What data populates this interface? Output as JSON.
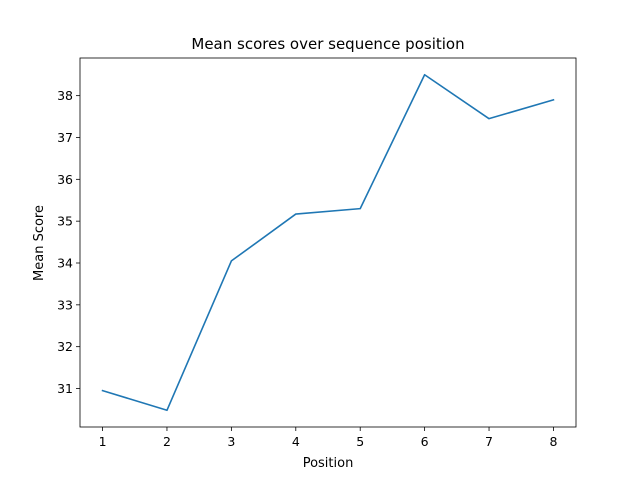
{
  "chart_data": {
    "type": "line",
    "title": "Mean scores over sequence position",
    "xlabel": "Position",
    "ylabel": "Mean Score",
    "x": [
      1,
      2,
      3,
      4,
      5,
      6,
      7,
      8
    ],
    "series": [
      {
        "values": [
          30.95,
          30.48,
          34.05,
          35.17,
          35.3,
          38.5,
          37.45,
          37.9
        ],
        "color": "#1f77b4"
      }
    ],
    "xlim": [
      0.65,
      8.35
    ],
    "ylim": [
      30.08,
      38.9
    ],
    "xticks": [
      "1",
      "2",
      "3",
      "4",
      "5",
      "6",
      "7",
      "8"
    ],
    "yticks": [
      "31",
      "32",
      "33",
      "34",
      "35",
      "36",
      "37",
      "38"
    ],
    "grid": false,
    "legend": "none"
  }
}
